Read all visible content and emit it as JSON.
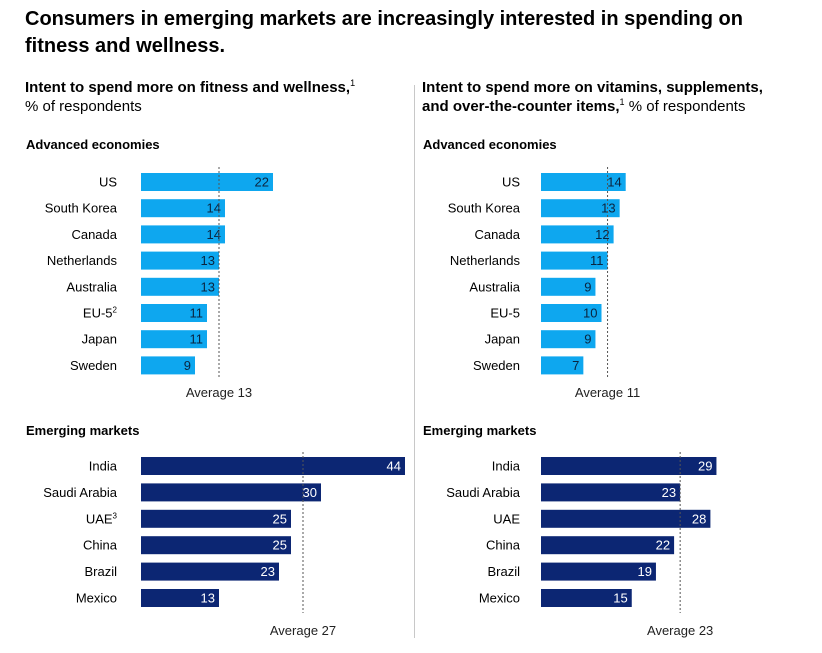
{
  "title": "Consumers in emerging markets are increasingly interested in spending on fitness and wellness.",
  "colors": {
    "advanced": "#0ea7ef",
    "emerging": "#0c2673",
    "avg_line": "#555555",
    "divider": "#c8c8c8"
  },
  "chart_data": [
    {
      "type": "bar",
      "orientation": "horizontal",
      "title_bold": "Intent to spend more on fitness and wellness,",
      "title_bold_2": "",
      "title_sup": "1",
      "title_rest": "% of respondents",
      "unit": "% of respondents",
      "groups": [
        {
          "name": "Advanced economies",
          "categories": [
            "US",
            "South Korea",
            "Canada",
            "Netherlands",
            "Australia",
            "EU-5",
            "Japan",
            "Sweden"
          ],
          "category_sups": [
            "",
            "",
            "",
            "",
            "",
            "2",
            "",
            ""
          ],
          "values": [
            22,
            14,
            14,
            13,
            13,
            11,
            11,
            9
          ],
          "average": 13,
          "average_label": "Average 13"
        },
        {
          "name": "Emerging markets",
          "categories": [
            "India",
            "Saudi Arabia",
            "UAE",
            "China",
            "Brazil",
            "Mexico"
          ],
          "category_sups": [
            "",
            "",
            "3",
            "",
            "",
            ""
          ],
          "values": [
            44,
            30,
            25,
            25,
            23,
            13
          ],
          "average": 27,
          "average_label": "Average 27"
        }
      ]
    },
    {
      "type": "bar",
      "orientation": "horizontal",
      "title_bold": "Intent to spend more on vitamins, supplements,",
      "title_bold_2": "and over-the-counter items,",
      "title_sup": "1",
      "title_rest": "% of respondents",
      "unit": "% of respondents",
      "groups": [
        {
          "name": "Advanced economies",
          "categories": [
            "US",
            "South Korea",
            "Canada",
            "Netherlands",
            "Australia",
            "EU-5",
            "Japan",
            "Sweden"
          ],
          "category_sups": [
            "",
            "",
            "",
            "",
            "",
            "",
            "",
            ""
          ],
          "values": [
            14,
            13,
            12,
            11,
            9,
            10,
            9,
            7
          ],
          "average": 11,
          "average_label": "Average 11"
        },
        {
          "name": "Emerging markets",
          "categories": [
            "India",
            "Saudi Arabia",
            "UAE",
            "China",
            "Brazil",
            "Mexico"
          ],
          "category_sups": [
            "",
            "",
            "",
            "",
            "",
            ""
          ],
          "values": [
            29,
            23,
            28,
            22,
            19,
            15
          ],
          "average": 23,
          "average_label": "Average 23"
        }
      ]
    }
  ]
}
